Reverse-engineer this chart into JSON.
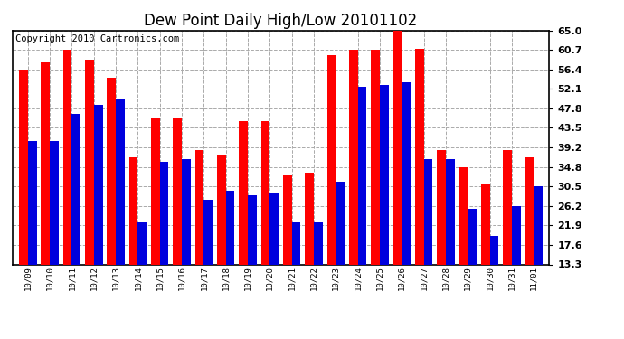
{
  "title": "Dew Point Daily High/Low 20101102",
  "copyright": "Copyright 2010 Cartronics.com",
  "categories": [
    "10/09",
    "10/10",
    "10/11",
    "10/12",
    "10/13",
    "10/14",
    "10/15",
    "10/16",
    "10/17",
    "10/18",
    "10/19",
    "10/20",
    "10/21",
    "10/22",
    "10/23",
    "10/24",
    "10/25",
    "10/26",
    "10/27",
    "10/28",
    "10/29",
    "10/30",
    "10/31",
    "11/01"
  ],
  "highs": [
    56.4,
    58.0,
    60.7,
    58.5,
    54.5,
    37.0,
    45.5,
    45.5,
    38.5,
    37.5,
    45.0,
    45.0,
    33.0,
    33.5,
    59.5,
    60.7,
    60.7,
    65.0,
    61.0,
    38.5,
    34.8,
    31.0,
    38.5,
    37.0
  ],
  "lows": [
    40.5,
    40.5,
    46.5,
    48.5,
    50.0,
    22.5,
    36.0,
    36.5,
    27.5,
    29.5,
    28.5,
    29.0,
    22.5,
    22.5,
    31.5,
    52.5,
    53.0,
    53.5,
    36.5,
    36.5,
    25.5,
    19.5,
    26.2,
    30.5
  ],
  "high_color": "#ff0000",
  "low_color": "#0000dd",
  "background_color": "#ffffff",
  "plot_bg_color": "#ffffff",
  "grid_color": "#aaaaaa",
  "yticks": [
    13.3,
    17.6,
    21.9,
    26.2,
    30.5,
    34.8,
    39.2,
    43.5,
    47.8,
    52.1,
    56.4,
    60.7,
    65.0
  ],
  "ymin": 13.3,
  "ymax": 65.0,
  "bar_width": 0.4,
  "title_fontsize": 12,
  "copyright_fontsize": 7.5,
  "figwidth": 6.9,
  "figheight": 3.75,
  "dpi": 100
}
